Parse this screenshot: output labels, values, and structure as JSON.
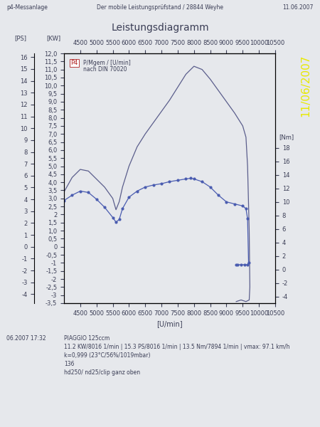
{
  "chart_data": {
    "type": "line",
    "title": "Leistungsdiagramm",
    "header": {
      "left": "p4-Messanlage",
      "center": "Der mobile Leistungsprüfstand / 28844 Weyhe",
      "right": "11.06.2007"
    },
    "date_stamp": "11/06/2007",
    "annotations": [
      "P4",
      "P/Mgem / [U/min]",
      "nach DIN 70020"
    ],
    "x_label": "[U/min]",
    "y_label": "[KW]",
    "y2_label": "[Nm]",
    "y3_label": "[PS]",
    "xlim": [
      4000,
      10500
    ],
    "xticks": [
      4500,
      5000,
      5500,
      6000,
      6500,
      7000,
      7500,
      8000,
      8500,
      9000,
      9500,
      10000,
      10500
    ],
    "ylim": [
      -3.5,
      12.0
    ],
    "yticks": [
      {
        "value": 12.0,
        "label": "12,0"
      },
      {
        "value": 11.5,
        "label": "11,5"
      },
      {
        "value": 11.0,
        "label": "11,0"
      },
      {
        "value": 10.5,
        "label": "10,5"
      },
      {
        "value": 10.0,
        "label": "10,0"
      },
      {
        "value": 9.5,
        "label": "9,5"
      },
      {
        "value": 9.0,
        "label": "9,0"
      },
      {
        "value": 8.5,
        "label": "8,5"
      },
      {
        "value": 8.0,
        "label": "8,0"
      },
      {
        "value": 7.5,
        "label": "7,5"
      },
      {
        "value": 7.0,
        "label": "7,0"
      },
      {
        "value": 6.5,
        "label": "6,5"
      },
      {
        "value": 6.0,
        "label": "6,0"
      },
      {
        "value": 5.5,
        "label": "5,5"
      },
      {
        "value": 5.0,
        "label": "5,0"
      },
      {
        "value": 4.5,
        "label": "4,5"
      },
      {
        "value": 4.0,
        "label": "4,0"
      },
      {
        "value": 3.5,
        "label": "3,5"
      },
      {
        "value": 3.0,
        "label": "3,0"
      },
      {
        "value": 2.5,
        "label": "2,5"
      },
      2,
      {
        "value": 1.5,
        "label": "1,5"
      },
      {
        "value": 1.0,
        "label": "1,0"
      },
      {
        "value": 0.5,
        "label": "0,5"
      },
      0,
      {
        "value": -0.5,
        "label": "-0,5"
      },
      -1,
      {
        "value": -1.5,
        "label": "-1,5"
      },
      -2,
      {
        "value": -2.5,
        "label": "-2,5"
      },
      -3,
      {
        "value": -3.5,
        "label": "-3,5"
      }
    ],
    "y2lim": [
      -5,
      32
    ],
    "y2ticks": [
      -4,
      -2,
      0,
      2,
      4,
      6,
      8,
      10,
      12,
      14,
      16,
      18
    ],
    "y3lim": [
      -4.76,
      16.32
    ],
    "y3ticks": [
      -4,
      -3,
      -2,
      -1,
      0,
      1,
      2,
      3,
      4,
      5,
      6,
      7,
      8,
      9,
      10,
      11,
      12,
      13,
      14,
      15,
      16
    ],
    "grid": false,
    "series": [
      {
        "axis": "y",
        "color": "#5b5e8c",
        "marker": "none",
        "line_style": "solid",
        "x": [
          4000,
          4250,
          4500,
          4750,
          5000,
          5250,
          5500,
          5600,
          5700,
          5800,
          6000,
          6250,
          6500,
          6750,
          7000,
          7250,
          7500,
          7750,
          8000,
          8250,
          8500,
          8750,
          9000,
          9250,
          9500,
          9600,
          9650,
          9700,
          9720,
          9700,
          9600,
          9450,
          9300
        ],
        "values": [
          3.4,
          4.3,
          4.8,
          4.7,
          4.2,
          3.7,
          3.0,
          2.3,
          2.8,
          3.7,
          5.0,
          6.2,
          7.0,
          7.7,
          8.4,
          9.1,
          9.9,
          10.7,
          11.2,
          11.0,
          10.4,
          9.7,
          9.0,
          8.3,
          7.5,
          6.8,
          5.0,
          1.0,
          -2.5,
          -3.3,
          -3.4,
          -3.3,
          -3.4
        ]
      },
      {
        "axis": "y2",
        "color": "#4a5cb0",
        "marker": "dot",
        "line_style": "solid",
        "x": [
          4000,
          4250,
          4500,
          4750,
          5000,
          5250,
          5500,
          5600,
          5700,
          5800,
          6000,
          6250,
          6500,
          6750,
          7000,
          7250,
          7500,
          7750,
          7894,
          8000,
          8250,
          8500,
          8750,
          9000,
          9250,
          9500,
          9600,
          9650,
          9680,
          9650,
          9550,
          9450,
          9350,
          9300
        ],
        "values": [
          10.2,
          11.0,
          11.6,
          11.4,
          10.4,
          9.2,
          7.7,
          7.0,
          7.4,
          9.0,
          10.7,
          11.6,
          12.2,
          12.5,
          12.7,
          13.0,
          13.2,
          13.4,
          13.5,
          13.4,
          13.0,
          12.2,
          11.0,
          10.0,
          9.7,
          9.4,
          9.0,
          7.5,
          1.0,
          0.7,
          0.7,
          0.7,
          0.7,
          0.7
        ]
      }
    ],
    "footer": {
      "timestamp": "06.2007 17:32",
      "lines": [
        "PIAGGIO 125ccm",
        "11.2 KW/8016 1/min | 15.3 PS/8016 1/min | 13.5 Nm/7894 1/min | vmax: 97.1 km/h",
        "k=0,999 (23°C/56%/1019mbar)",
        "136",
        "hd250/ nd25/clip ganz oben"
      ]
    }
  }
}
